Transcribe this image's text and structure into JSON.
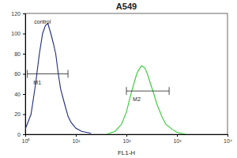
{
  "chart_data": {
    "type": "line",
    "title": "A549",
    "x_label": "FL1-H",
    "log": "x",
    "xlim": [
      1,
      10000
    ],
    "xticks": [
      {
        "value": 1,
        "label": "10⁰"
      },
      {
        "value": 10,
        "label": "10¹"
      },
      {
        "value": 100,
        "label": "10²"
      },
      {
        "value": 1000,
        "label": "10³"
      },
      {
        "value": 10000,
        "label": "10⁴"
      }
    ],
    "ylim": [
      0,
      120
    ],
    "yticks": [
      0,
      20,
      40,
      60,
      80,
      100,
      120
    ],
    "series": [
      {
        "color": "#1f2a80",
        "x": [
          1.0,
          1.3,
          1.6,
          1.9,
          2.2,
          2.5,
          2.8,
          3.2,
          3.6,
          4.0,
          4.5,
          5.0,
          6.0,
          7.0,
          8.0,
          10.0,
          13.0,
          20.0
        ],
        "values": [
          5,
          20,
          50,
          80,
          100,
          108,
          110,
          100,
          90,
          80,
          60,
          45,
          30,
          18,
          12,
          6,
          3,
          1
        ]
      },
      {
        "color": "#33cc33",
        "x": [
          40,
          60,
          80,
          100,
          120,
          140,
          160,
          180,
          200,
          230,
          260,
          300,
          350,
          400,
          500,
          600,
          800,
          1000,
          1500
        ],
        "values": [
          0,
          3,
          10,
          22,
          38,
          50,
          60,
          65,
          68,
          66,
          60,
          50,
          40,
          30,
          18,
          10,
          5,
          2,
          0
        ]
      }
    ],
    "annotations": [
      {
        "text": "control",
        "x": 1.5,
        "y": 110
      }
    ],
    "gates": [
      {
        "label": "M1",
        "x": [
          1.1,
          7
        ],
        "y": 60
      },
      {
        "label": "M2",
        "x": [
          100,
          700
        ],
        "y": 43
      }
    ]
  }
}
